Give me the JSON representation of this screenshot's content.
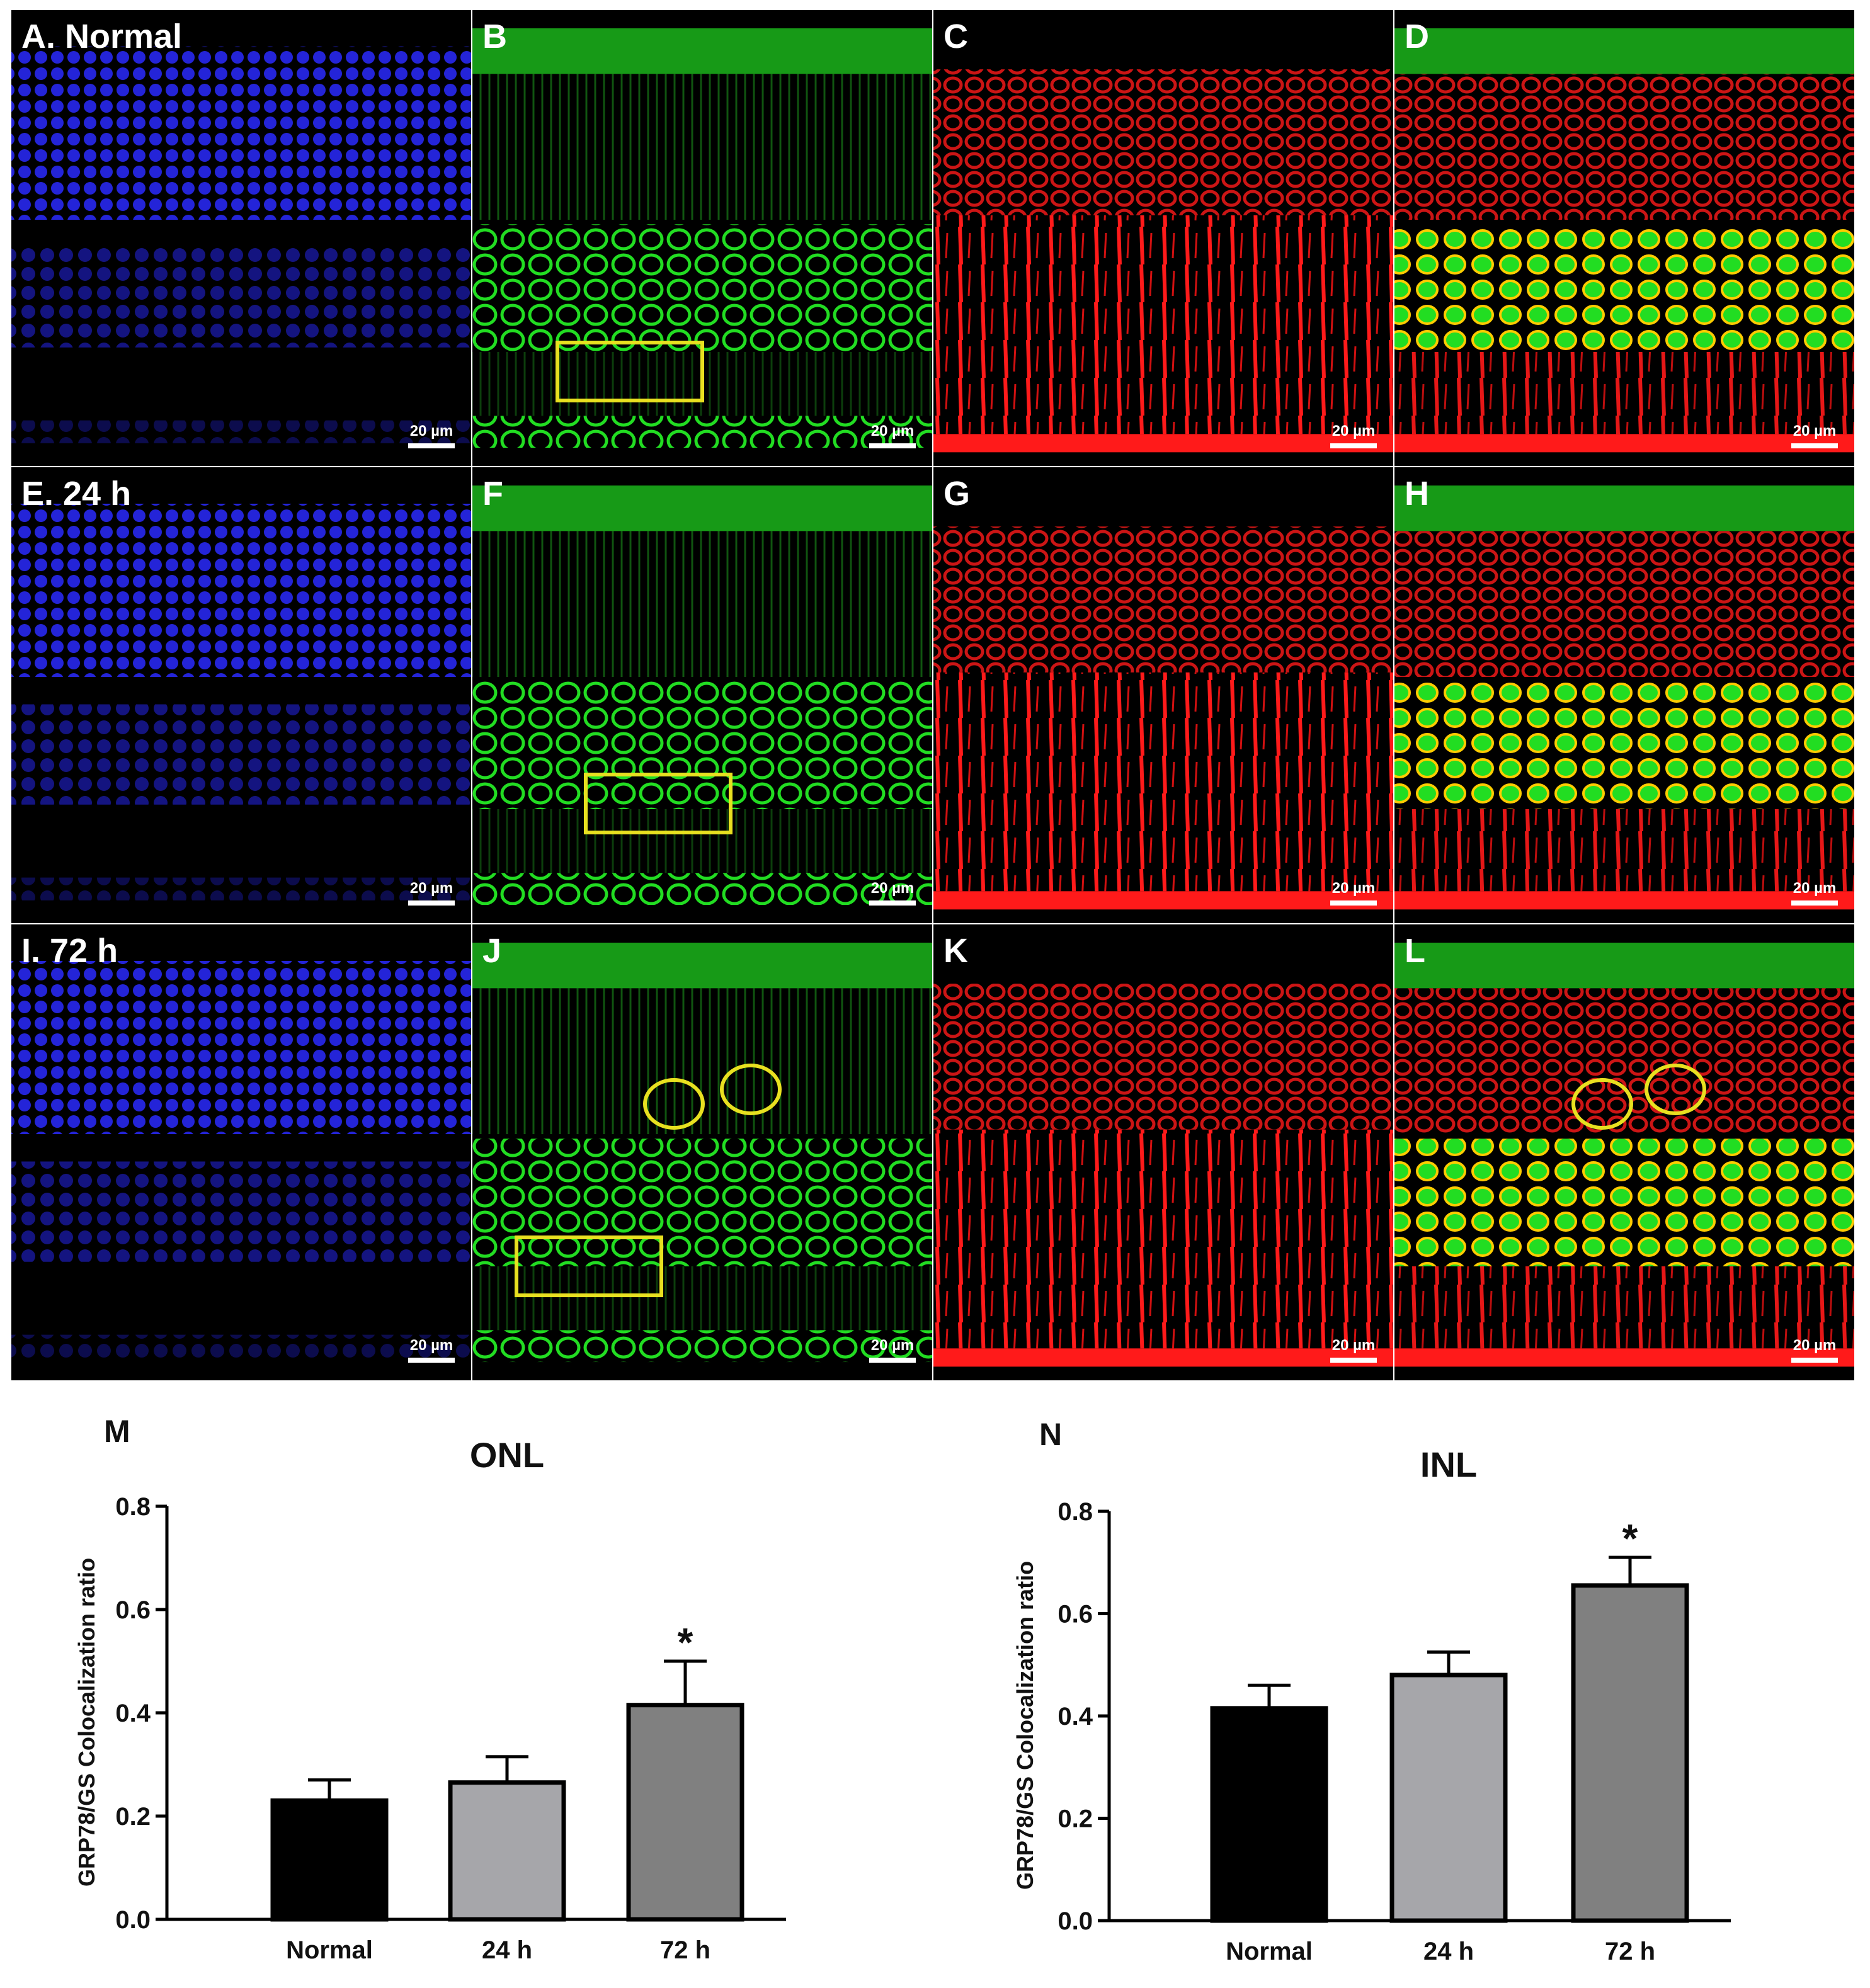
{
  "micrographs": {
    "scale_bar_text": "20 µm",
    "panels": [
      {
        "label": "A. Normal",
        "channel": "blue",
        "row": "Normal"
      },
      {
        "label": "B",
        "channel": "green",
        "row": "Normal",
        "box": true
      },
      {
        "label": "C",
        "channel": "red",
        "row": "Normal"
      },
      {
        "label": "D",
        "channel": "merge",
        "row": "Normal"
      },
      {
        "label": "E. 24 h",
        "channel": "blue",
        "row": "24 h"
      },
      {
        "label": "F",
        "channel": "green",
        "row": "24 h",
        "box": true
      },
      {
        "label": "G",
        "channel": "red",
        "row": "24 h"
      },
      {
        "label": "H",
        "channel": "merge",
        "row": "24 h"
      },
      {
        "label": "I. 72 h",
        "channel": "blue",
        "row": "72 h"
      },
      {
        "label": "J",
        "channel": "green",
        "row": "72 h",
        "box": true,
        "circles": true
      },
      {
        "label": "K",
        "channel": "red",
        "row": "72 h"
      },
      {
        "label": "L",
        "channel": "merge",
        "row": "72 h",
        "circles": true
      }
    ],
    "colors": {
      "blue": "#1a1acc",
      "green": "#22dd22",
      "red": "#ff1a1a",
      "yellow": "#e8e020"
    }
  },
  "chart_data": [
    {
      "panel_letter": "M",
      "type": "bar",
      "title": "ONL",
      "ylabel": "GRP78/GS Colocalization ratio",
      "xlabel": "",
      "categories": [
        "Normal",
        "24 h",
        "72 h"
      ],
      "values": [
        0.23,
        0.265,
        0.415
      ],
      "errors": [
        0.04,
        0.05,
        0.085
      ],
      "significance": [
        "",
        "",
        "*"
      ],
      "bar_colors": [
        "#000000",
        "#a6a6aa",
        "#808080"
      ],
      "ylim": [
        0,
        0.8
      ],
      "yticks": [
        "0.0",
        "0.2",
        "0.4",
        "0.6",
        "0.8"
      ]
    },
    {
      "panel_letter": "N",
      "type": "bar",
      "title": "INL",
      "ylabel": "GRP78/GS Colocalization ratio",
      "xlabel": "",
      "categories": [
        "Normal",
        "24 h",
        "72 h"
      ],
      "values": [
        0.415,
        0.48,
        0.655
      ],
      "errors": [
        0.045,
        0.045,
        0.055
      ],
      "significance": [
        "",
        "",
        "*"
      ],
      "bar_colors": [
        "#000000",
        "#a6a6aa",
        "#808080"
      ],
      "ylim": [
        0,
        0.8
      ],
      "yticks": [
        "0.0",
        "0.2",
        "0.4",
        "0.6",
        "0.8"
      ]
    }
  ]
}
